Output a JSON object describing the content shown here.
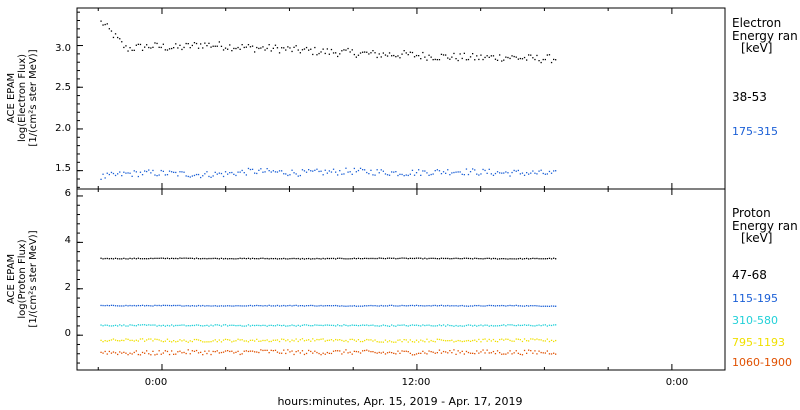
{
  "chart_data": [
    {
      "type": "scatter",
      "ylabel_lines": [
        "ACE EPAM",
        "log(Electron Flux)",
        "[1/(cm²s ster MeV)]"
      ],
      "ylim": [
        1.28,
        3.45
      ],
      "yticks": [
        1.5,
        2.0,
        2.5,
        3.0
      ],
      "ytick_labels": [
        "1.5",
        "2.0",
        "2.5",
        "3.0"
      ],
      "legend_title": [
        "Electron",
        "Energy ran",
        "[keV]"
      ],
      "series": [
        {
          "name": "38-53",
          "color": "#000000",
          "values": [
            3.3,
            2.97,
            3.0,
            2.98,
            3.02,
            3.0,
            2.98,
            2.97,
            2.95,
            2.93,
            2.92,
            2.9,
            2.9,
            2.88,
            2.87,
            2.86,
            2.87,
            2.85,
            2.85
          ]
        },
        {
          "name": "175-315",
          "color": "#1a5fd6",
          "values": [
            1.43,
            1.47,
            1.48,
            1.47,
            1.46,
            1.47,
            1.5,
            1.49,
            1.48,
            1.49,
            1.5,
            1.49,
            1.48,
            1.49,
            1.5,
            1.49,
            1.48,
            1.48,
            1.47
          ]
        }
      ]
    },
    {
      "type": "scatter",
      "ylabel_lines": [
        "ACE EPAM",
        "log(Proton Flux)",
        "[1/(cm²s ster MeV)]"
      ],
      "ylim": [
        -1.5,
        6.3
      ],
      "yticks": [
        0,
        2,
        4,
        6
      ],
      "ytick_labels": [
        "0",
        "2",
        "4",
        "6"
      ],
      "legend_title": [
        "Proton",
        "Energy ran",
        "[keV]"
      ],
      "series": [
        {
          "name": "47-68",
          "color": "#000000",
          "values": [
            3.33,
            3.33,
            3.34,
            3.33,
            3.33,
            3.32,
            3.33,
            3.34,
            3.33,
            3.33,
            3.32,
            3.33
          ]
        },
        {
          "name": "115-195",
          "color": "#1a5fd6",
          "values": [
            1.3,
            1.3,
            1.3,
            1.29,
            1.3,
            1.3,
            1.29,
            1.3,
            1.3,
            1.29,
            1.3,
            1.28
          ]
        },
        {
          "name": "310-580",
          "color": "#22d0d8",
          "values": [
            0.45,
            0.45,
            0.44,
            0.45,
            0.44,
            0.45,
            0.45,
            0.44,
            0.45,
            0.44,
            0.45,
            0.45
          ]
        },
        {
          "name": "795-1193",
          "color": "#f0e000",
          "values": [
            -0.2,
            -0.18,
            -0.22,
            -0.2,
            -0.2,
            -0.18,
            -0.2,
            -0.22,
            -0.2,
            -0.2,
            -0.19,
            -0.2
          ]
        },
        {
          "name": "1060-1900",
          "color": "#e05000",
          "values": [
            -0.7,
            -0.75,
            -0.7,
            -0.72,
            -0.68,
            -0.72,
            -0.7,
            -0.74,
            -0.7,
            -0.7,
            -0.72,
            -0.7
          ]
        }
      ]
    }
  ],
  "xaxis": {
    "label": "hours:minutes, Apr. 15, 2019 - Apr. 17, 2019",
    "tick_labels": [
      "0:00",
      "12:00",
      "0:00"
    ],
    "tick_hours": [
      0,
      12,
      24
    ],
    "xlim_hours": [
      -4.0,
      26.5
    ],
    "data_range_hours": [
      -2.9,
      18.5
    ]
  }
}
